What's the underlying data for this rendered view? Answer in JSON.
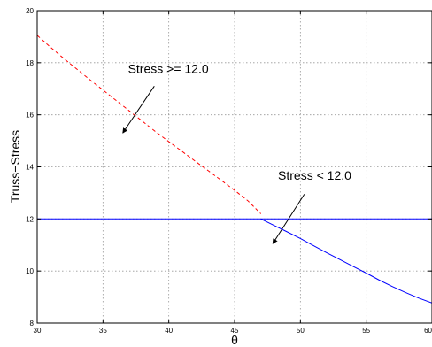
{
  "chart_data": {
    "type": "line",
    "xlabel": "θ",
    "ylabel": "Truss−Stress",
    "xlim": [
      30,
      60
    ],
    "ylim": [
      8,
      20
    ],
    "xticks": [
      30,
      35,
      40,
      45,
      50,
      55,
      60
    ],
    "yticks": [
      8,
      10,
      12,
      14,
      16,
      18,
      20
    ],
    "grid": true,
    "series": [
      {
        "style": "dashed",
        "color": "#ff0000",
        "x": [
          30,
          31,
          32,
          33,
          34,
          35,
          36,
          37,
          38,
          39,
          40,
          41,
          42,
          43,
          44,
          45,
          46,
          47
        ],
        "y": [
          19.05,
          18.6,
          18.17,
          17.76,
          17.35,
          16.95,
          16.55,
          16.15,
          15.75,
          15.35,
          14.97,
          14.6,
          14.22,
          13.85,
          13.48,
          13.1,
          12.7,
          12.2
        ]
      },
      {
        "style": "solid",
        "color": "#0000ff",
        "x": [
          30,
          60
        ],
        "y": [
          12.0,
          12.0
        ]
      },
      {
        "style": "solid",
        "color": "#0000ff",
        "x": [
          47,
          48,
          49,
          50,
          51,
          52,
          53,
          54,
          55,
          56,
          57,
          58,
          59,
          60
        ],
        "y": [
          12.0,
          11.75,
          11.5,
          11.25,
          10.97,
          10.7,
          10.44,
          10.18,
          9.92,
          9.65,
          9.4,
          9.17,
          8.96,
          8.77
        ]
      }
    ],
    "annotations": [
      {
        "text": "Stress >= 12.0",
        "text_at": [
          36.9,
          17.6
        ],
        "arrow_from": [
          38.9,
          17.1
        ],
        "arrow_to": [
          36.5,
          15.3
        ]
      },
      {
        "text": "Stress < 12.0",
        "text_at": [
          48.3,
          13.5
        ],
        "arrow_from": [
          50.3,
          12.95
        ],
        "arrow_to": [
          47.9,
          11.05
        ]
      }
    ]
  }
}
